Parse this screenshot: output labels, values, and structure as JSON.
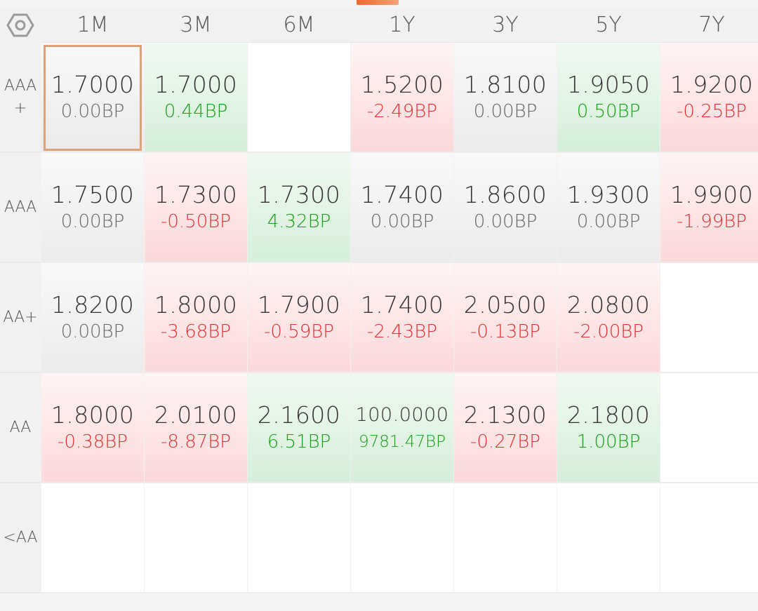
{
  "settings": {
    "icon": "settings-hexagon-icon"
  },
  "tenors": [
    "1M",
    "3M",
    "6M",
    "1Y",
    "3Y",
    "5Y",
    "7Y"
  ],
  "ratings": [
    {
      "label": "AAA\n+",
      "cells": [
        {
          "value": "1.7000",
          "change": "0.00BP",
          "dir": "neutral",
          "selected": true
        },
        {
          "value": "1.7000",
          "change": "0.44BP",
          "dir": "up"
        },
        null,
        {
          "value": "1.5200",
          "change": "-2.49BP",
          "dir": "down"
        },
        {
          "value": "1.8100",
          "change": "0.00BP",
          "dir": "neutral"
        },
        {
          "value": "1.9050",
          "change": "0.50BP",
          "dir": "up"
        },
        {
          "value": "1.9200",
          "change": "-0.25BP",
          "dir": "down"
        }
      ]
    },
    {
      "label": "AAA",
      "cells": [
        {
          "value": "1.7500",
          "change": "0.00BP",
          "dir": "neutral"
        },
        {
          "value": "1.7300",
          "change": "-0.50BP",
          "dir": "down"
        },
        {
          "value": "1.7300",
          "change": "4.32BP",
          "dir": "up"
        },
        {
          "value": "1.7400",
          "change": "0.00BP",
          "dir": "neutral"
        },
        {
          "value": "1.8600",
          "change": "0.00BP",
          "dir": "neutral"
        },
        {
          "value": "1.9300",
          "change": "0.00BP",
          "dir": "neutral"
        },
        {
          "value": "1.9900",
          "change": "-1.99BP",
          "dir": "down"
        }
      ]
    },
    {
      "label": "AA+",
      "cells": [
        {
          "value": "1.8200",
          "change": "0.00BP",
          "dir": "neutral"
        },
        {
          "value": "1.8000",
          "change": "-3.68BP",
          "dir": "down"
        },
        {
          "value": "1.7900",
          "change": "-0.59BP",
          "dir": "down"
        },
        {
          "value": "1.7400",
          "change": "-2.43BP",
          "dir": "down"
        },
        {
          "value": "2.0500",
          "change": "-0.13BP",
          "dir": "down"
        },
        {
          "value": "2.0800",
          "change": "-2.00BP",
          "dir": "down"
        },
        null
      ]
    },
    {
      "label": "AA",
      "cells": [
        {
          "value": "1.8000",
          "change": "-0.38BP",
          "dir": "down"
        },
        {
          "value": "2.0100",
          "change": "-8.87BP",
          "dir": "down"
        },
        {
          "value": "2.1600",
          "change": "6.51BP",
          "dir": "up"
        },
        {
          "value": "100.0000",
          "change": "9781.47BP",
          "dir": "up",
          "small": true
        },
        {
          "value": "2.1300",
          "change": "-0.27BP",
          "dir": "down"
        },
        {
          "value": "2.1800",
          "change": "1.00BP",
          "dir": "up"
        },
        null
      ]
    },
    {
      "label": "<AA",
      "cells": [
        null,
        null,
        null,
        null,
        null,
        null,
        null
      ]
    }
  ]
}
